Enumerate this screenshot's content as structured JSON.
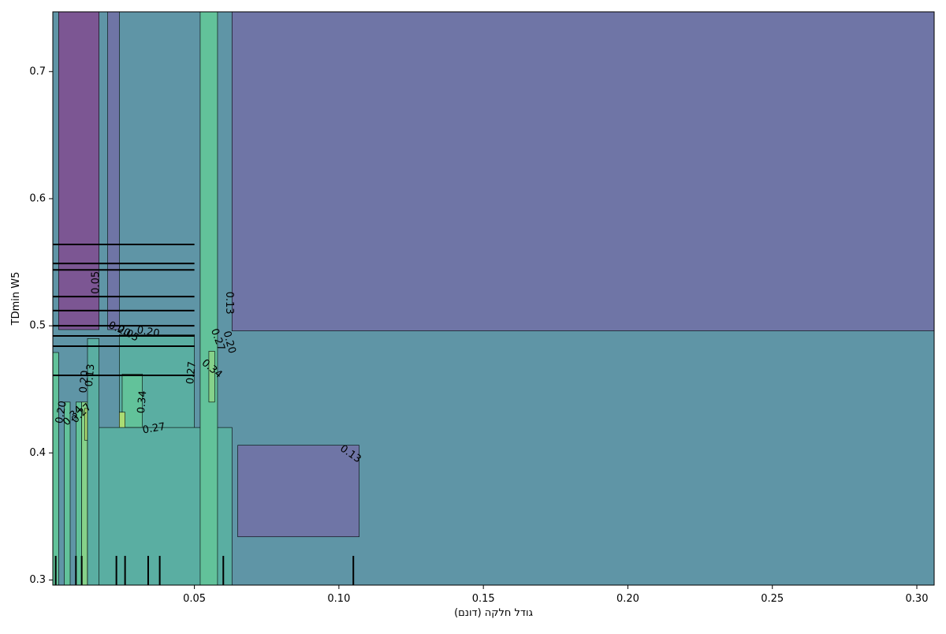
{
  "chart_data": {
    "type": "contour",
    "title": "",
    "xlabel": "גודל חלקה (דונם)",
    "ylabel": "TDmin W5",
    "xlim": [
      0.001,
      0.306
    ],
    "ylim": [
      0.296,
      0.747
    ],
    "x_ticks": [
      0.05,
      0.1,
      0.15,
      0.2,
      0.25,
      0.3
    ],
    "x_tick_labels": [
      "0.05",
      "0.10",
      "0.15",
      "0.20",
      "0.25",
      "0.30"
    ],
    "y_ticks": [
      0.3,
      0.4,
      0.5,
      0.6,
      0.7
    ],
    "y_tick_labels": [
      "0.3",
      "0.4",
      "0.5",
      "0.6",
      "0.7"
    ],
    "contour_levels": [
      0.05,
      0.13,
      0.2,
      0.27,
      0.34
    ],
    "colormap": [
      "#7c5693",
      "#6f75a6",
      "#5f95a6",
      "#5aaea2",
      "#62c29a",
      "#86d28a",
      "#aadc74"
    ],
    "regions": [
      {
        "x": [
          0.001,
          0.306
        ],
        "y": [
          0.296,
          0.747
        ],
        "level": 2
      },
      {
        "x": [
          0.063,
          0.306
        ],
        "y": [
          0.496,
          0.747
        ],
        "level": 1
      },
      {
        "x": [
          0.065,
          0.107
        ],
        "y": [
          0.334,
          0.406
        ],
        "level": 1
      },
      {
        "x": [
          0.003,
          0.017
        ],
        "y": [
          0.497,
          0.747
        ],
        "level": 0
      },
      {
        "x": [
          0.02,
          0.024
        ],
        "y": [
          0.497,
          0.747
        ],
        "level": 1
      },
      {
        "x": [
          0.024,
          0.05
        ],
        "y": [
          0.419,
          0.493
        ],
        "level": 3
      },
      {
        "x": [
          0.025,
          0.032
        ],
        "y": [
          0.42,
          0.462
        ],
        "level": 4
      },
      {
        "x": [
          0.024,
          0.026
        ],
        "y": [
          0.416,
          0.432
        ],
        "level": 6
      },
      {
        "x": [
          0.017,
          0.063
        ],
        "y": [
          0.296,
          0.42
        ],
        "level": 3
      },
      {
        "x": [
          0.052,
          0.058
        ],
        "y": [
          0.296,
          0.747
        ],
        "level": 4
      },
      {
        "x": [
          0.055,
          0.057
        ],
        "y": [
          0.44,
          0.48
        ],
        "level": 5
      },
      {
        "x": [
          0.001,
          0.003
        ],
        "y": [
          0.296,
          0.479
        ],
        "level": 4
      },
      {
        "x": [
          0.005,
          0.007
        ],
        "y": [
          0.296,
          0.44
        ],
        "level": 4
      },
      {
        "x": [
          0.009,
          0.011
        ],
        "y": [
          0.296,
          0.44
        ],
        "level": 4
      },
      {
        "x": [
          0.011,
          0.013
        ],
        "y": [
          0.296,
          0.44
        ],
        "level": 5
      },
      {
        "x": [
          0.012,
          0.013
        ],
        "y": [
          0.41,
          0.435
        ],
        "level": 6
      },
      {
        "x": [
          0.013,
          0.017
        ],
        "y": [
          0.296,
          0.49
        ],
        "level": 3
      }
    ],
    "contour_labels": [
      {
        "x": 0.016,
        "y": 0.534,
        "text": "0.05",
        "angle": -90
      },
      {
        "x": 0.062,
        "y": 0.518,
        "text": "0.13",
        "angle": 90
      },
      {
        "x": 0.062,
        "y": 0.487,
        "text": "0.20",
        "angle": 75
      },
      {
        "x": 0.058,
        "y": 0.489,
        "text": "0.27",
        "angle": 70
      },
      {
        "x": 0.056,
        "y": 0.466,
        "text": "0.34",
        "angle": 40
      },
      {
        "x": 0.049,
        "y": 0.463,
        "text": "0.27",
        "angle": -85
      },
      {
        "x": 0.034,
        "y": 0.495,
        "text": "0.20",
        "angle": 10
      },
      {
        "x": 0.024,
        "y": 0.497,
        "text": "0.20",
        "angle": 25
      },
      {
        "x": 0.027,
        "y": 0.494,
        "text": "0.05",
        "angle": 30
      },
      {
        "x": 0.032,
        "y": 0.44,
        "text": "0.34",
        "angle": -85
      },
      {
        "x": 0.036,
        "y": 0.419,
        "text": "0.27",
        "angle": -10
      },
      {
        "x": 0.014,
        "y": 0.461,
        "text": "0.13",
        "angle": -85
      },
      {
        "x": 0.012,
        "y": 0.456,
        "text": "0.20",
        "angle": -85
      },
      {
        "x": 0.104,
        "y": 0.399,
        "text": "0.13",
        "angle": 35
      },
      {
        "x": 0.004,
        "y": 0.432,
        "text": "0.20",
        "angle": -80
      },
      {
        "x": 0.008,
        "y": 0.429,
        "text": "0.34",
        "angle": -45
      },
      {
        "x": 0.011,
        "y": 0.431,
        "text": "0.27",
        "angle": -45
      }
    ],
    "y_rug": [
      0.564,
      0.549,
      0.544,
      0.523,
      0.512,
      0.5,
      0.492,
      0.484,
      0.461
    ],
    "y_rug_xrange": [
      0.001,
      0.05
    ],
    "x_rug": [
      0.002,
      0.009,
      0.011,
      0.023,
      0.026,
      0.034,
      0.038,
      0.06,
      0.105
    ],
    "x_rug_yrange": [
      0.296,
      0.319
    ]
  }
}
